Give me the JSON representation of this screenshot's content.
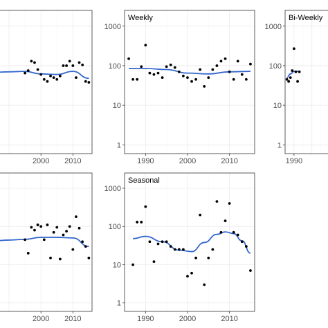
{
  "colors": {
    "points": "#000000",
    "smooth": "#3366cc",
    "grid": "#ebebeb",
    "border": "#333333"
  },
  "chart_data": [
    {
      "type": "scatter",
      "title": "",
      "scale": "log10",
      "xlim": [
        1985,
        2016
      ],
      "ylim": [
        0.6,
        2500
      ],
      "xticks": [
        2000,
        2010
      ],
      "yticks": [],
      "x": [
        1995,
        1996,
        1997,
        1998,
        1999,
        2000,
        2001,
        2002,
        2003,
        2004,
        2005,
        2006,
        2007,
        2008,
        2009,
        2010,
        2011,
        2012,
        2013,
        2014,
        2015
      ],
      "y": [
        65,
        75,
        130,
        120,
        80,
        60,
        45,
        40,
        55,
        50,
        45,
        55,
        100,
        100,
        130,
        100,
        50,
        120,
        105,
        40,
        38
      ],
      "smooth": {
        "x": [
          1985,
          1990,
          1995,
          2000,
          2005,
          2010,
          2015
        ],
        "y": [
          68,
          70,
          72,
          62,
          60,
          72,
          48
        ]
      }
    },
    {
      "type": "scatter",
      "title": "Weekly",
      "scale": "log10",
      "xlim": [
        1985,
        2016
      ],
      "ylim": [
        0.6,
        2500
      ],
      "xticks": [
        1990,
        2000,
        2010
      ],
      "yticks": [
        1,
        10,
        100,
        1000
      ],
      "x": [
        1986,
        1987,
        1988,
        1989,
        1990,
        1991,
        1992,
        1993,
        1994,
        1995,
        1996,
        1997,
        1998,
        1999,
        2000,
        2001,
        2002,
        2003,
        2004,
        2005,
        2006,
        2007,
        2008,
        2009,
        2010,
        2011,
        2012,
        2013,
        2014,
        2015
      ],
      "y": [
        150,
        45,
        45,
        95,
        330,
        65,
        60,
        65,
        50,
        95,
        105,
        90,
        70,
        55,
        50,
        40,
        45,
        80,
        30,
        50,
        80,
        100,
        130,
        150,
        70,
        45,
        130,
        60,
        45,
        110
      ],
      "smooth": {
        "x": [
          1986,
          1990,
          1995,
          2000,
          2005,
          2010,
          2015
        ],
        "y": [
          85,
          85,
          80,
          65,
          62,
          70,
          72
        ]
      }
    },
    {
      "type": "scatter",
      "title": "Bi-Weekly",
      "scale": "log10",
      "xlim": [
        1985,
        2016
      ],
      "ylim": [
        0.6,
        2500
      ],
      "xticks": [
        1990
      ],
      "yticks": [
        1,
        10,
        100,
        1000
      ],
      "x": [
        1986,
        1987,
        1988,
        1989,
        1990,
        1991,
        1992,
        1993
      ],
      "y": [
        45,
        40,
        50,
        75,
        270,
        70,
        40,
        70
      ],
      "smooth": {
        "x": [
          1986,
          1988,
          1990,
          1992,
          1993
        ],
        "y": [
          50,
          62,
          72,
          72,
          70
        ]
      }
    },
    {
      "type": "scatter",
      "title": "",
      "scale": "log10",
      "xlim": [
        1985,
        2016
      ],
      "ylim": [
        0.6,
        2500
      ],
      "xticks": [
        2000,
        2010
      ],
      "yticks": [],
      "x": [
        1995,
        1996,
        1997,
        1998,
        1999,
        2000,
        2001,
        2002,
        2003,
        2004,
        2005,
        2006,
        2007,
        2008,
        2009,
        2010,
        2011,
        2012,
        2013,
        2014,
        2015
      ],
      "y": [
        45,
        20,
        95,
        80,
        110,
        100,
        45,
        110,
        15,
        70,
        95,
        14,
        60,
        75,
        100,
        25,
        180,
        90,
        40,
        30,
        15
      ],
      "smooth": {
        "x": [
          1985,
          1990,
          1995,
          2000,
          2005,
          2010,
          2015
        ],
        "y": [
          42,
          44,
          46,
          52,
          52,
          50,
          30
        ]
      }
    },
    {
      "type": "scatter",
      "title": "Seasonal",
      "scale": "log10",
      "xlim": [
        1985,
        2016
      ],
      "ylim": [
        0.6,
        2500
      ],
      "xticks": [
        1990,
        2000,
        2010
      ],
      "yticks": [
        1,
        10,
        100,
        1000
      ],
      "x": [
        1987,
        1988,
        1989,
        1990,
        1991,
        1992,
        1993,
        1994,
        1995,
        1996,
        1997,
        1998,
        1999,
        2000,
        2001,
        2002,
        2003,
        2004,
        2005,
        2006,
        2007,
        2008,
        2009,
        2010,
        2011,
        2012,
        2013,
        2014,
        2015
      ],
      "y": [
        10,
        130,
        130,
        330,
        40,
        12,
        35,
        40,
        40,
        30,
        25,
        25,
        25,
        5,
        6,
        15,
        200,
        3,
        15,
        25,
        450,
        70,
        140,
        400,
        70,
        60,
        40,
        30,
        7
      ],
      "smooth": {
        "x": [
          1987,
          1990,
          1994,
          1998,
          2001,
          2004,
          2007,
          2009,
          2011,
          2013,
          2015
        ],
        "y": [
          48,
          55,
          40,
          24,
          22,
          38,
          62,
          72,
          65,
          42,
          20
        ]
      }
    }
  ]
}
